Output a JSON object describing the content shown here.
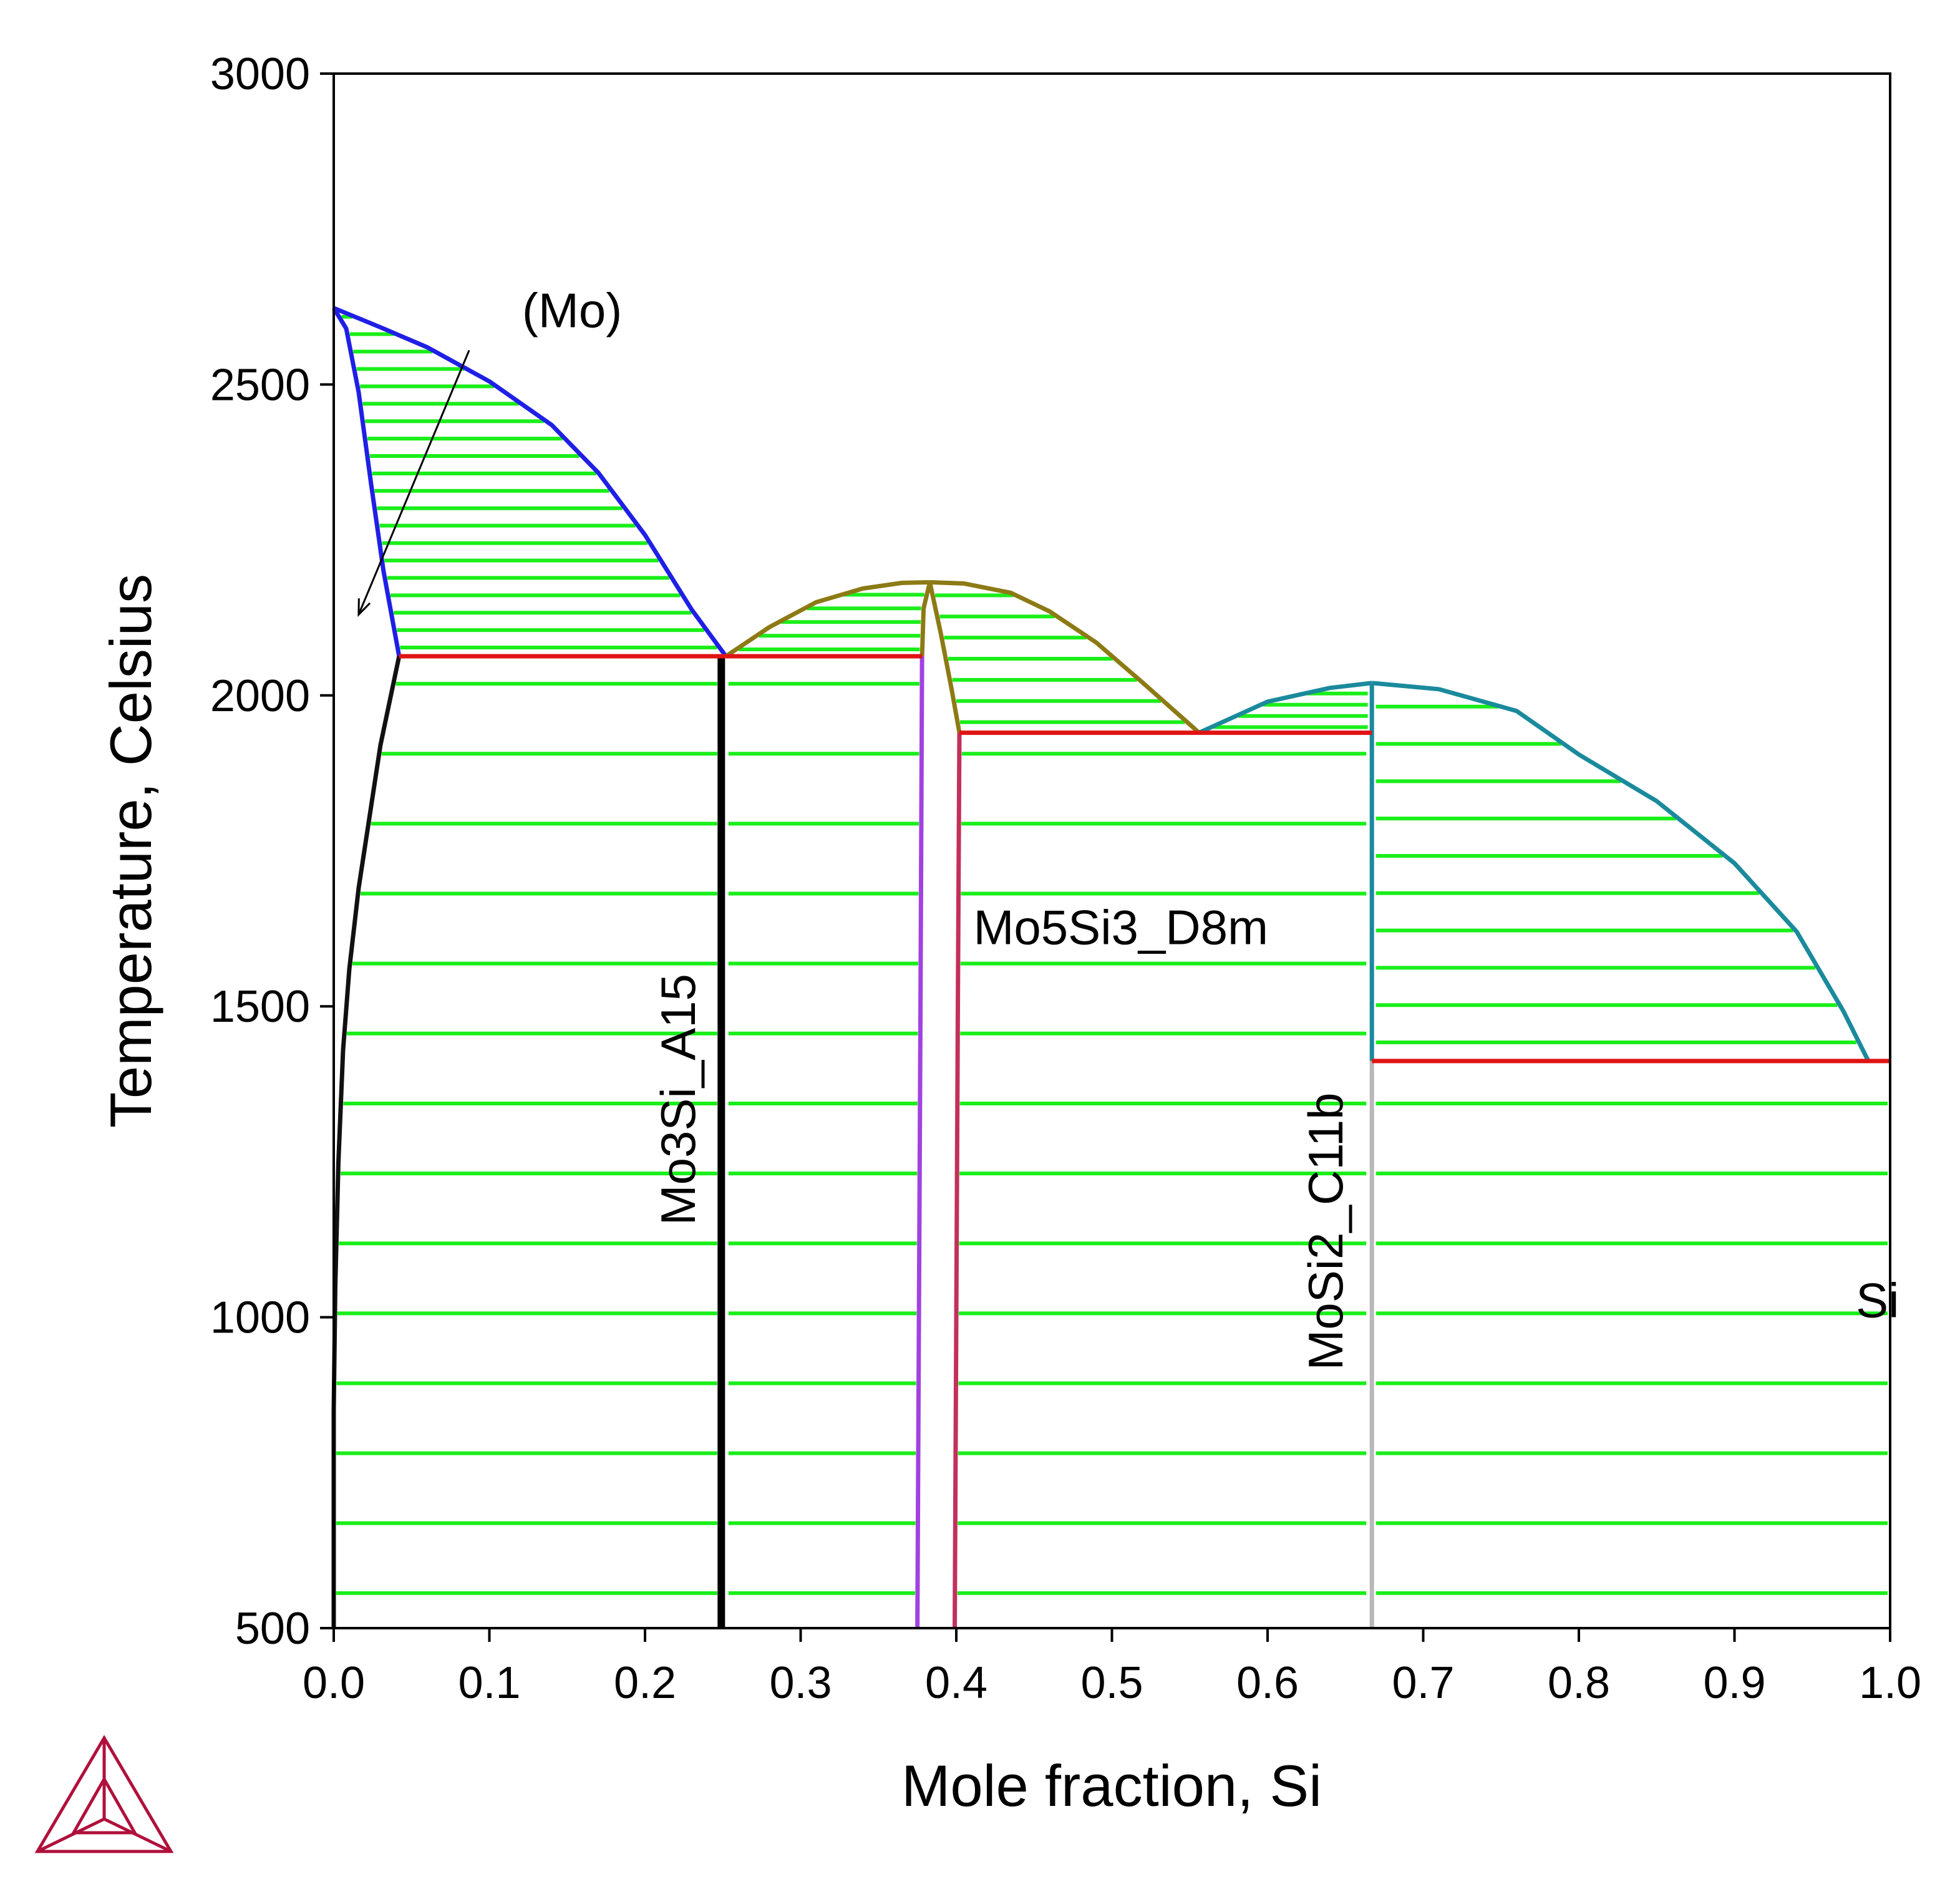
{
  "chart_data": {
    "type": "line",
    "xlabel": "Mole fraction, Si",
    "ylabel": "Temperature, Celsius",
    "xlim": [
      0.0,
      1.0
    ],
    "ylim": [
      500,
      3000
    ],
    "x_ticks": [
      0.0,
      0.1,
      0.2,
      0.3,
      0.4,
      0.5,
      0.6,
      0.7,
      0.8,
      0.9,
      1.0
    ],
    "x_tick_labels": [
      "0.0",
      "0.1",
      "0.2",
      "0.3",
      "0.4",
      "0.5",
      "0.6",
      "0.7",
      "0.8",
      "0.9",
      "1.0"
    ],
    "y_ticks": [
      500,
      1000,
      1500,
      2000,
      2500,
      3000
    ],
    "y_tick_labels": [
      "500",
      "1000",
      "1500",
      "2000",
      "2500",
      "3000"
    ],
    "grid": false,
    "colors": {
      "tie_line": "#1aee1a",
      "mo_liquidus_solidus": "#1f1fe6",
      "mo_solvus": "#111111",
      "mo3si": "#000000",
      "mo5si3_liquidus": "#8c7a14",
      "mo5si3_left_boundary": "#a142e0",
      "mo5si3_right_boundary": "#c2305c",
      "mosi2_liquidus": "#1a8a9c",
      "mosi2_line": "#b8b8b8",
      "invariant": "#e01414",
      "logo": "#b0103c"
    },
    "annotations": [
      {
        "text": "(Mo)",
        "x": 0.121,
        "y": 2592,
        "arrow_from": [
          0.087,
          2555
        ],
        "arrow_to": [
          0.016,
          2130
        ]
      },
      {
        "text": "Mo3Si_A15",
        "x": 0.232,
        "y": 1350,
        "rotation": -90
      },
      {
        "text": "Mo5Si3_D8m",
        "x": 0.411,
        "y": 1600
      },
      {
        "text": "MoSi2_C11b",
        "x": 0.648,
        "y": 1138,
        "rotation": -90
      },
      {
        "text": "Si",
        "x": 0.978,
        "y": 1000
      }
    ],
    "series": [
      {
        "id": "mo-liquidus",
        "color_key": "mo_liquidus_solidus",
        "points": [
          [
            0.0,
            2623
          ],
          [
            0.03,
            2592
          ],
          [
            0.06,
            2560
          ],
          [
            0.1,
            2505
          ],
          [
            0.14,
            2435
          ],
          [
            0.17,
            2358
          ],
          [
            0.2,
            2258
          ],
          [
            0.23,
            2138
          ],
          [
            0.252,
            2063
          ]
        ]
      },
      {
        "id": "mo-solidus",
        "color_key": "mo_liquidus_solidus",
        "points": [
          [
            0.0,
            2623
          ],
          [
            0.008,
            2590
          ],
          [
            0.016,
            2488
          ],
          [
            0.024,
            2340
          ],
          [
            0.032,
            2200
          ],
          [
            0.042,
            2063
          ]
        ]
      },
      {
        "id": "mo-solvus",
        "color_key": "mo_solvus",
        "points": [
          [
            0.042,
            2063
          ],
          [
            0.03,
            1920
          ],
          [
            0.016,
            1690
          ],
          [
            0.01,
            1560
          ],
          [
            0.006,
            1430
          ],
          [
            0.003,
            1250
          ],
          [
            0.001,
            1050
          ],
          [
            0.0,
            850
          ],
          [
            0.0,
            500
          ]
        ]
      },
      {
        "id": "mo3si-right",
        "color_key": "mo3si",
        "points": [
          [
            0.25,
            500
          ],
          [
            0.25,
            2063
          ]
        ]
      },
      {
        "id": "mo3si-left",
        "color_key": "mo3si",
        "points": [
          [
            0.248,
            500
          ],
          [
            0.248,
            2060
          ]
        ]
      },
      {
        "id": "mo5si3-liquidus-left",
        "color_key": "mo5si3_liquidus",
        "points": [
          [
            0.252,
            2063
          ],
          [
            0.28,
            2110
          ],
          [
            0.31,
            2150
          ],
          [
            0.34,
            2172
          ],
          [
            0.365,
            2181
          ],
          [
            0.383,
            2182
          ]
        ]
      },
      {
        "id": "mo5si3-liquidus-right",
        "color_key": "mo5si3_liquidus",
        "points": [
          [
            0.383,
            2182
          ],
          [
            0.405,
            2180
          ],
          [
            0.435,
            2165
          ],
          [
            0.46,
            2135
          ],
          [
            0.49,
            2085
          ],
          [
            0.52,
            2020
          ],
          [
            0.556,
            1940
          ]
        ]
      },
      {
        "id": "mo5si3-solidus-left",
        "color_key": "mo5si3_liquidus",
        "points": [
          [
            0.378,
            2063
          ],
          [
            0.379,
            2140
          ],
          [
            0.383,
            2182
          ]
        ]
      },
      {
        "id": "mo5si3-solidus-right",
        "color_key": "mo5si3_liquidus",
        "points": [
          [
            0.383,
            2182
          ],
          [
            0.39,
            2100
          ],
          [
            0.397,
            2010
          ],
          [
            0.402,
            1940
          ]
        ]
      },
      {
        "id": "mo5si3-left-boundary",
        "color_key": "mo5si3_left_boundary",
        "points": [
          [
            0.378,
            2063
          ],
          [
            0.377,
            1500
          ],
          [
            0.375,
            500
          ]
        ]
      },
      {
        "id": "mo5si3-right-boundary",
        "color_key": "mo5si3_right_boundary",
        "points": [
          [
            0.402,
            1940
          ],
          [
            0.401,
            1500
          ],
          [
            0.399,
            500
          ]
        ]
      },
      {
        "id": "mosi2-liquidus-left",
        "color_key": "mosi2_liquidus",
        "points": [
          [
            0.556,
            1940
          ],
          [
            0.6,
            1990
          ],
          [
            0.64,
            2012
          ],
          [
            0.667,
            2020
          ]
        ]
      },
      {
        "id": "mosi2-liquidus-right",
        "color_key": "mosi2_liquidus",
        "points": [
          [
            0.667,
            2020
          ],
          [
            0.71,
            2010
          ],
          [
            0.76,
            1975
          ],
          [
            0.8,
            1905
          ],
          [
            0.85,
            1830
          ],
          [
            0.9,
            1730
          ],
          [
            0.94,
            1620
          ],
          [
            0.97,
            1492
          ],
          [
            0.986,
            1412
          ]
        ]
      },
      {
        "id": "mosi2-upper",
        "color_key": "mosi2_liquidus",
        "points": [
          [
            0.667,
            2020
          ],
          [
            0.667,
            1412
          ]
        ]
      },
      {
        "id": "mosi2-lower",
        "color_key": "mosi2_line",
        "points": [
          [
            0.667,
            1412
          ],
          [
            0.667,
            500
          ]
        ]
      },
      {
        "id": "eutectic-mo-mo3si",
        "color_key": "invariant",
        "points": [
          [
            0.042,
            2063
          ],
          [
            0.252,
            2063
          ]
        ]
      },
      {
        "id": "peritectic-mo3si-mo5si3",
        "color_key": "invariant",
        "points": [
          [
            0.252,
            2063
          ],
          [
            0.378,
            2063
          ]
        ]
      },
      {
        "id": "eutectic-mo5si3-mosi2",
        "color_key": "invariant",
        "points": [
          [
            0.402,
            1940
          ],
          [
            0.667,
            1940
          ]
        ]
      },
      {
        "id": "eutectic-mosi2-si",
        "color_key": "invariant",
        "points": [
          [
            0.667,
            1412
          ],
          [
            1.0,
            1412
          ]
        ]
      }
    ]
  }
}
